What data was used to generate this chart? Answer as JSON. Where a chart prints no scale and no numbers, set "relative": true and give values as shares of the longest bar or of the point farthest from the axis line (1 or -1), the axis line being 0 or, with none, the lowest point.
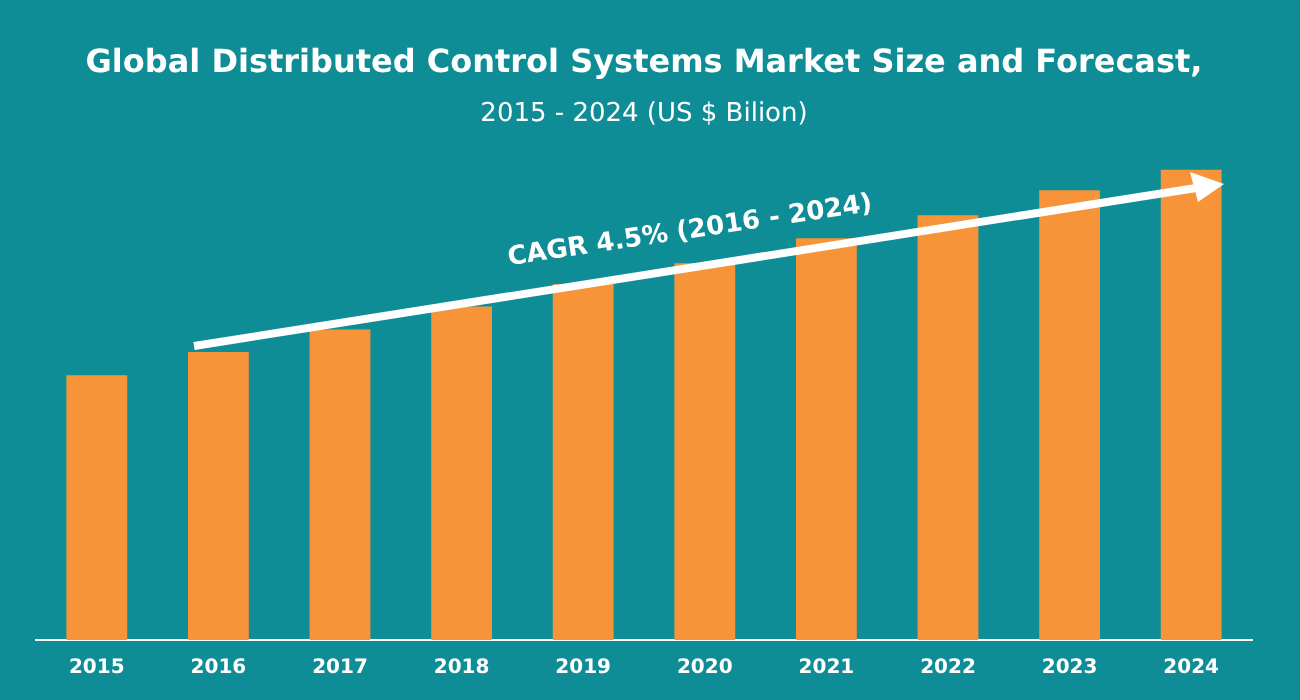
{
  "chart_data": {
    "type": "bar",
    "title": "Global Distributed Control Systems Market Size and Forecast,",
    "subtitle": "2015 - 2024 (US $ Bilion)",
    "categories": [
      "2015",
      "2016",
      "2017",
      "2018",
      "2019",
      "2020",
      "2021",
      "2022",
      "2023",
      "2024"
    ],
    "values": [
      0.563,
      0.612,
      0.66,
      0.709,
      0.757,
      0.801,
      0.854,
      0.903,
      0.956,
      1
    ],
    "color": "#f7943a",
    "relative": true,
    "grid": false,
    "legend": false,
    "annotations": [
      "CAGR 4.5% (2016 - 2024)"
    ]
  }
}
